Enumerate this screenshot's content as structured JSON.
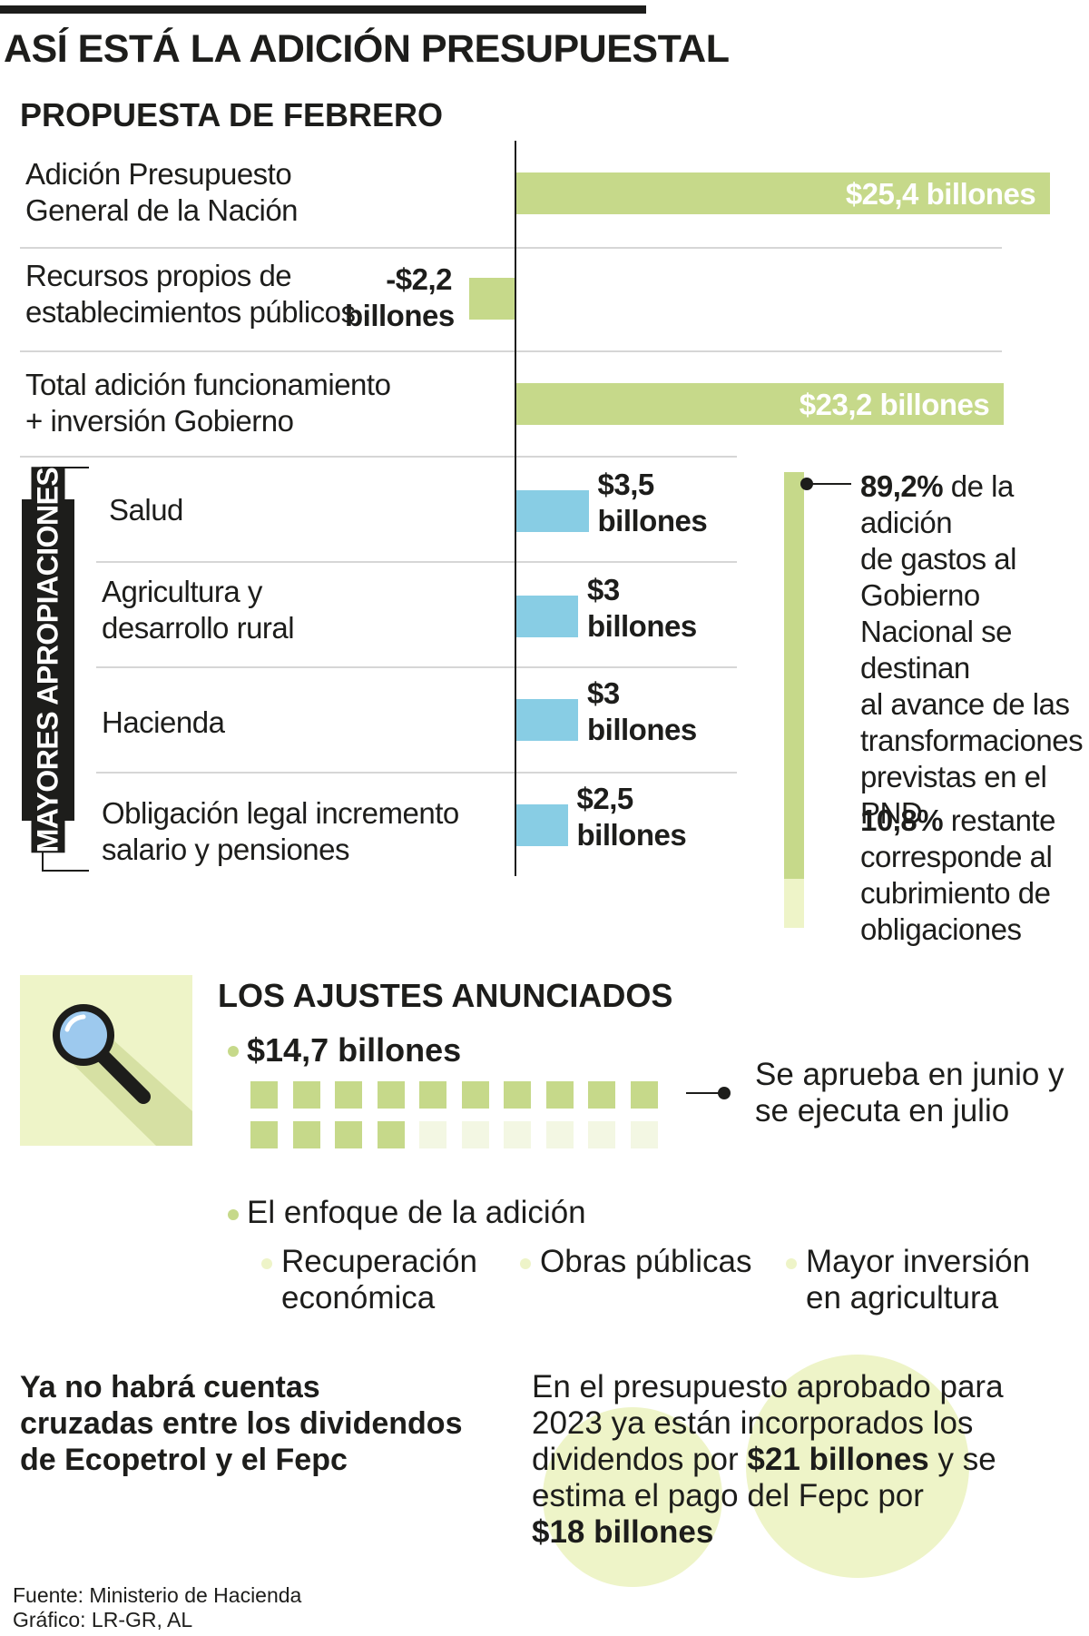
{
  "header": {
    "title": "ASÍ ESTÁ LA ADICIÓN PRESUPUESTAL",
    "subtitle": "PROPUESTA DE FEBRERO"
  },
  "chart_data": {
    "type": "bar",
    "title": "PROPUESTA DE FEBRERO",
    "unit": "billones de pesos",
    "series": [
      {
        "name": "Propuesta de febrero",
        "categories": [
          "Adición Presupuesto General de la Nación",
          "Recursos propios de establecimientos públicos",
          "Total adición funcionamiento + inversión Gobierno"
        ],
        "values": [
          25.4,
          -2.2,
          23.2
        ],
        "color": "#c6d98a"
      },
      {
        "name": "Mayores apropiaciones",
        "categories": [
          "Salud",
          "Agricultura y desarrollo rural",
          "Hacienda",
          "Obligación legal incremento salario y pensiones"
        ],
        "values": [
          3.5,
          3,
          3,
          2.5
        ],
        "color": "#88cde4"
      }
    ],
    "split": {
      "shares": [
        89.2,
        10.8
      ]
    },
    "blocks": {
      "filled": 14,
      "total": 20
    }
  },
  "chart": {
    "rows": [
      {
        "line1": "Adición Presupuesto",
        "line2": "General de la Nación",
        "value_label": "$25,4 billones"
      },
      {
        "line1": "Recursos propios de",
        "line2": "establecimientos públicos",
        "value_line1": "-$2,2",
        "value_line2": "billones"
      },
      {
        "line1": "Total adición funcionamiento",
        "line2": "+ inversión Gobierno",
        "value_label": "$23,2 billones"
      }
    ],
    "section_label": "MAYORES APROPIACIONES",
    "blue_rows": [
      {
        "line1": "Salud",
        "line2": "",
        "value_line1": "$3,5",
        "value_line2": "billones"
      },
      {
        "line1": "Agricultura y",
        "line2": "desarrollo rural",
        "value_line1": "$3",
        "value_line2": "billones"
      },
      {
        "line1": "Hacienda",
        "line2": "",
        "value_line1": "$3",
        "value_line2": "billones"
      },
      {
        "line1": "Obligación legal incremento",
        "line2": "salario y pensiones",
        "value_line1": "$2,5",
        "value_line2": "billones"
      }
    ]
  },
  "split_notes": {
    "first_pct": "89,2%",
    "first_text_l1": "de la adición",
    "first_text_l2": "de gastos al Gobierno",
    "first_text_l3": "Nacional se destinan",
    "first_text_l4": "al avance de las",
    "first_text_l5": "transformaciones",
    "first_text_l6": "previstas en el PND",
    "second_pct": "10,8%",
    "second_text_l1": "restante",
    "second_text_l2": "corresponde al",
    "second_text_l3": "cubrimiento de",
    "second_text_l4": "obligaciones"
  },
  "ajustes": {
    "title": "LOS AJUSTES ANUNCIADOS",
    "amount": "$14,7 billones",
    "note_l1": "Se aprueba en junio y",
    "note_l2": "se ejecuta en julio",
    "focus_title": "El enfoque de la adición",
    "focus_items": [
      {
        "l1": "Recuperación",
        "l2": "económica"
      },
      {
        "l1": "Obras públicas",
        "l2": ""
      },
      {
        "l1": "Mayor inversión",
        "l2": "en agricultura"
      }
    ]
  },
  "bottom": {
    "left_l1": "Ya no habrá cuentas",
    "left_l2": "cruzadas entre los dividendos",
    "left_l3": "de Ecopetrol y el Fepc",
    "right_l1": "En el presupuesto aprobado para",
    "right_l2": "2023 ya están incorporados los",
    "right_l3a": "dividendos por ",
    "right_l3b": "$21 billones",
    "right_l3c": " y se",
    "right_l4": "estima el pago del Fepc por",
    "right_l5": "$18 billones"
  },
  "footer": {
    "source": "Fuente: Ministerio de Hacienda",
    "graphic": "Gráfico: LR-GR, AL"
  },
  "colors": {
    "green": "#c6d98a",
    "light_green": "#eef4c8",
    "blue": "#88cde4",
    "dark": "#1d1d1b"
  }
}
